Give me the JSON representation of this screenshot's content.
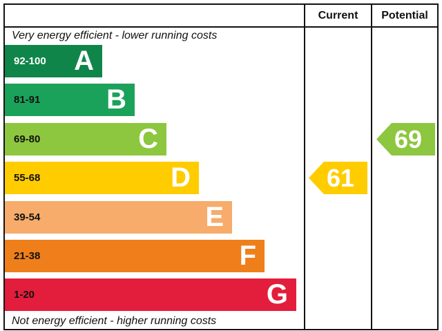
{
  "header": {
    "current_label": "Current",
    "potential_label": "Potential"
  },
  "notes": {
    "top": "Very energy efficient - lower running costs",
    "bottom": "Not energy efficient - higher running costs"
  },
  "chart_data": {
    "type": "bar",
    "categories": [
      "A",
      "B",
      "C",
      "D",
      "E",
      "F",
      "G"
    ],
    "ranges": [
      "92-100",
      "81-91",
      "69-80",
      "55-68",
      "39-54",
      "21-38",
      "1-20"
    ],
    "colors": [
      "#10854a",
      "#1ba25a",
      "#8dc63f",
      "#ffcc00",
      "#f7ac6b",
      "#ef7f1a",
      "#e31d3c"
    ],
    "range_text_colors": [
      "#ffffff",
      "#111111",
      "#111111",
      "#111111",
      "#111111",
      "#111111",
      "#111111"
    ],
    "current": {
      "value": 61,
      "band": "D",
      "color": "#ffcc00"
    },
    "potential": {
      "value": 69,
      "band": "C",
      "color": "#8dc63f"
    }
  }
}
